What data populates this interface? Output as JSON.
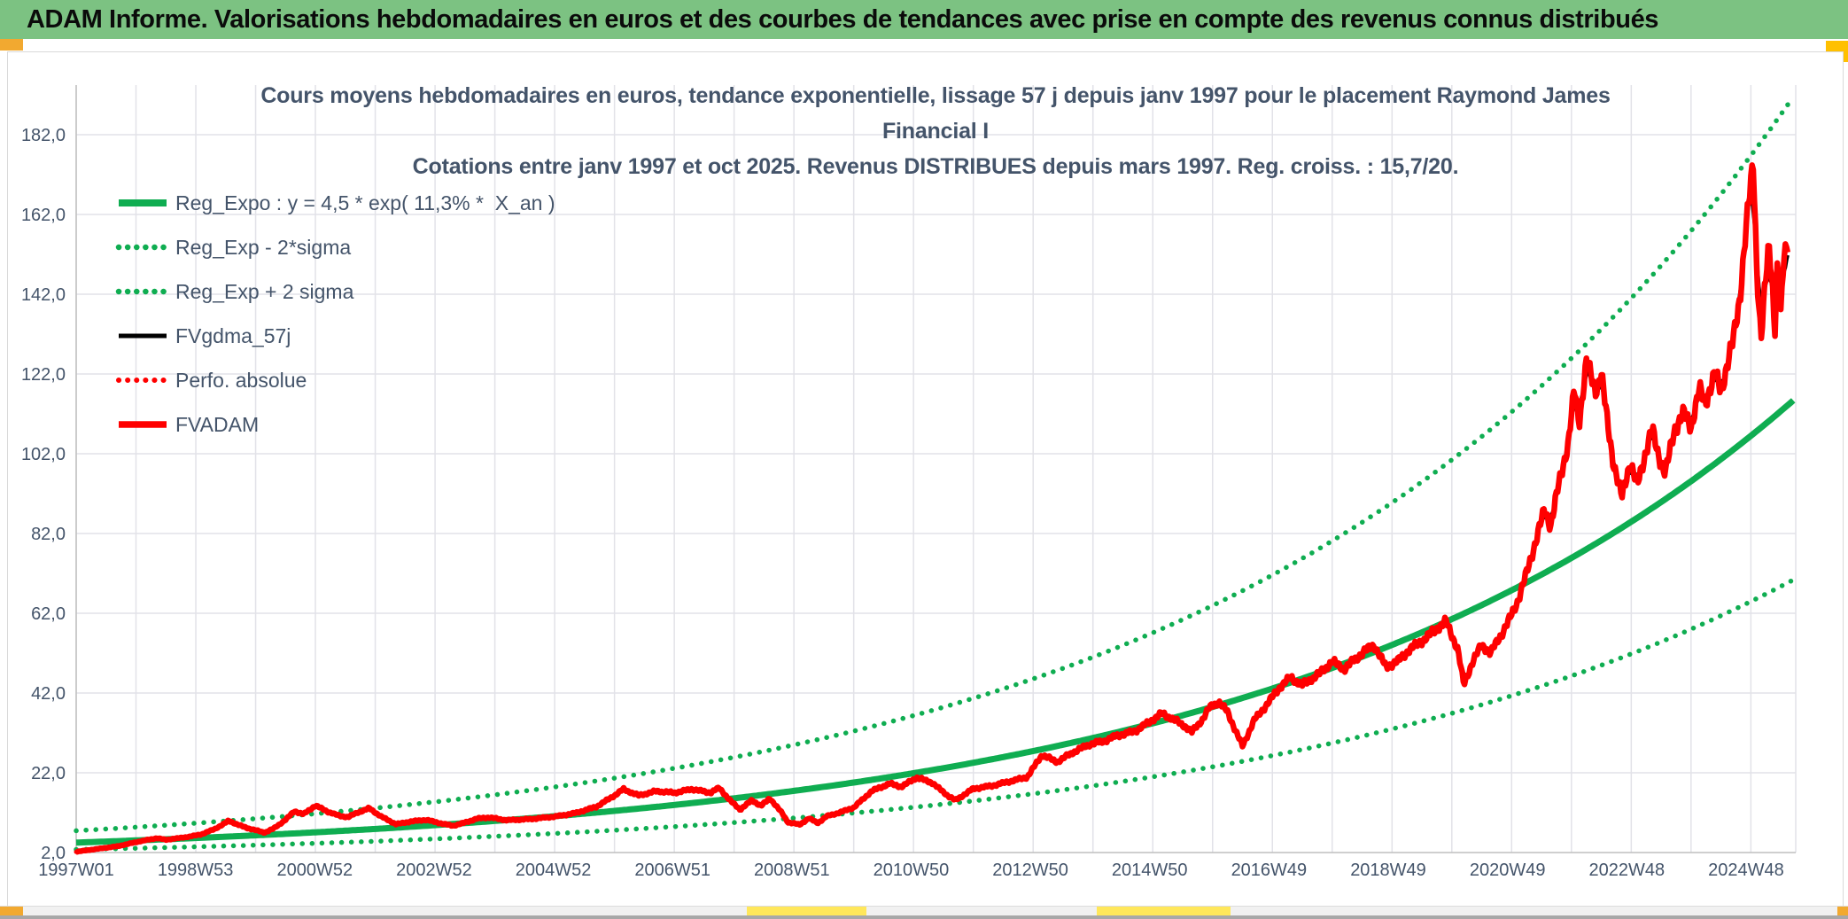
{
  "header": {
    "title": "ADAM Informe. Valorisations hebdomadaires en euros et des courbes de tendances avec prise en compte des revenus connus distribués"
  },
  "chart_data": {
    "type": "line",
    "title": "Cours moyens hebdomadaires en euros, tendance exponentielle, lissage 57 j depuis janv 1997 pour le placement Raymond James Financial I",
    "subtitle": "Cotations entre janv 1997 et oct 2025. Revenus DISTRIBUES depuis mars 1997. Reg. croiss. : 15,7/20.",
    "x_axis": {
      "tick_labels": [
        "1997W01",
        "1998W53",
        "2000W52",
        "2002W52",
        "2004W52",
        "2006W51",
        "2008W51",
        "2010W50",
        "2012W50",
        "2014W50",
        "2016W49",
        "2018W49",
        "2020W49",
        "2022W48",
        "2024W48"
      ],
      "tick_interval_weeks": 104,
      "range_years": [
        1997.0,
        2025.75
      ],
      "gridline_interval_years": 1,
      "grid": true
    },
    "y_axis": {
      "tick_labels": [
        "2,0",
        "22,0",
        "42,0",
        "62,0",
        "82,0",
        "102,0",
        "122,0",
        "142,0",
        "162,0",
        "182,0"
      ],
      "tick_values": [
        2,
        22,
        42,
        62,
        82,
        102,
        122,
        142,
        162,
        182
      ],
      "unit": "euros",
      "grid": true
    },
    "legend_position": "top-left-inside",
    "regression": {
      "formula_label": "y = 4,5 * exp( 11,3% *  X_an )",
      "a": 4.5,
      "annual_rate": 0.113,
      "band_upper_multiplier": 1.66,
      "band_lower_multiplier": 0.61,
      "growth_score_label": "Reg. croiss. : 15,7/20."
    },
    "series": [
      {
        "name": "Reg_Expo : y = 4,5 * exp( 11,3% *  X_an )",
        "color": "#0FAD51",
        "style": "solid",
        "width": 7,
        "source": "regression"
      },
      {
        "name": "Reg_Exp - 2*sigma",
        "color": "#0FAD51",
        "style": "dotted",
        "width": 5.5,
        "source": "band_lower"
      },
      {
        "name": "Reg_Exp + 2 sigma",
        "color": "#0FAD51",
        "style": "dotted",
        "width": 5.5,
        "source": "band_upper"
      },
      {
        "name": "FVgdma_57j",
        "color": "#000000",
        "style": "solid",
        "width": 4,
        "source": "smoothed",
        "smoothing_weeks": 9
      },
      {
        "name": "Perfo. absolue",
        "color": "#FF0000",
        "style": "dotted",
        "width": 5,
        "source": "points"
      },
      {
        "name": "FVADAM",
        "color": "#FF0000",
        "style": "solid",
        "width": 6.5,
        "source": "points"
      }
    ],
    "points": {
      "x_years": [
        1997.0,
        1997.15,
        1997.3,
        1997.5,
        1997.7,
        1997.85,
        1998.0,
        1998.2,
        1998.35,
        1998.5,
        1998.7,
        1998.9,
        1999.1,
        1999.3,
        1999.45,
        1999.55,
        1999.7,
        1999.85,
        2000.0,
        2000.15,
        2000.3,
        2000.5,
        2000.65,
        2000.8,
        2001.0,
        2001.2,
        2001.4,
        2001.55,
        2001.7,
        2001.9,
        2002.1,
        2002.35,
        2002.6,
        2002.85,
        2003.1,
        2003.3,
        2003.5,
        2003.7,
        2003.9,
        2004.2,
        2004.6,
        2005.0,
        2005.35,
        2005.7,
        2006.0,
        2006.15,
        2006.4,
        2006.7,
        2007.0,
        2007.3,
        2007.6,
        2007.75,
        2007.95,
        2008.1,
        2008.3,
        2008.45,
        2008.6,
        2008.8,
        2008.9,
        2009.1,
        2009.25,
        2009.4,
        2009.55,
        2009.8,
        2010.0,
        2010.3,
        2010.6,
        2010.8,
        2011.05,
        2011.3,
        2011.58,
        2011.7,
        2012.0,
        2012.3,
        2012.6,
        2012.9,
        2013.15,
        2013.4,
        2013.65,
        2013.94,
        2014.2,
        2014.4,
        2014.7,
        2015.0,
        2015.15,
        2015.3,
        2015.55,
        2015.65,
        2015.85,
        2015.95,
        2016.1,
        2016.25,
        2016.4,
        2016.5,
        2016.7,
        2016.85,
        2017.1,
        2017.3,
        2017.5,
        2017.8,
        2018.0,
        2018.2,
        2018.5,
        2018.7,
        2018.9,
        2019.1,
        2019.3,
        2019.5,
        2019.7,
        2019.9,
        2020.1,
        2020.2,
        2020.35,
        2020.5,
        2020.65,
        2020.8,
        2020.95,
        2021.1,
        2021.25,
        2021.4,
        2021.55,
        2021.65,
        2021.8,
        2021.95,
        2022.05,
        2022.13,
        2022.25,
        2022.4,
        2022.5,
        2022.6,
        2022.7,
        2022.84,
        2022.98,
        2023.1,
        2023.25,
        2023.35,
        2023.45,
        2023.57,
        2023.72,
        2023.87,
        2024.0,
        2024.14,
        2024.24,
        2024.4,
        2024.5,
        2024.6,
        2024.7,
        2024.82,
        2024.92,
        2025.0,
        2025.04,
        2025.1,
        2025.17,
        2025.23,
        2025.3,
        2025.35,
        2025.4,
        2025.45,
        2025.5,
        2025.55,
        2025.62
      ],
      "values": [
        2.2,
        2.5,
        2.8,
        3.2,
        3.6,
        4.1,
        4.6,
        5.2,
        5.6,
        5.2,
        5.6,
        6.0,
        6.6,
        7.8,
        9.0,
        10.0,
        9.0,
        8.2,
        7.6,
        7.0,
        8.0,
        10.2,
        12.4,
        11.6,
        13.8,
        12.3,
        11.2,
        10.9,
        12.0,
        13.1,
        11.0,
        9.1,
        9.8,
        10.2,
        9.3,
        8.7,
        9.5,
        10.5,
        10.8,
        10.1,
        10.4,
        11.0,
        11.9,
        13.5,
        16.3,
        17.9,
        16.3,
        17.4,
        17.0,
        17.9,
        17.0,
        18.2,
        14.8,
        12.8,
        15.1,
        13.7,
        15.6,
        11.9,
        9.6,
        9.0,
        10.6,
        9.4,
        11.1,
        12.2,
        13.3,
        17.4,
        19.3,
        18.5,
        20.8,
        19.6,
        16.2,
        15.1,
        18.0,
        18.7,
        19.8,
        20.9,
        26.5,
        24.7,
        27.0,
        29.1,
        30.0,
        31.3,
        32.4,
        35.3,
        36.9,
        35.8,
        33.6,
        32.1,
        35.8,
        38.4,
        39.8,
        37.3,
        32.0,
        28.7,
        35.3,
        38.0,
        43.0,
        46.0,
        44.0,
        47.0,
        50.0,
        48.0,
        52.0,
        54.0,
        48.5,
        50.0,
        53.0,
        55.0,
        57.5,
        60.0,
        53.0,
        44.0,
        50.0,
        54.0,
        52.0,
        56.0,
        60.0,
        65.0,
        72.0,
        80.0,
        88.0,
        84.0,
        95.0,
        105.0,
        118.0,
        110.0,
        125.0,
        118.0,
        122.0,
        110.0,
        100.0,
        91.0,
        100.0,
        94.0,
        103.0,
        108.0,
        102.0,
        97.0,
        108.0,
        112.0,
        109.0,
        118.0,
        115.0,
        122.0,
        118.0,
        124.0,
        130.0,
        142.0,
        158.0,
        170.0,
        176.0,
        148.0,
        130.0,
        142.0,
        155.0,
        148.0,
        132.0,
        150.0,
        136.0,
        152.0,
        156.0
      ]
    },
    "notes": {
      "perfo_absolue": "dotted red series coincides with FVADAM (hidden beneath it)",
      "fvgdma": "black curve is 57-day smoothing of FVADAM"
    }
  },
  "colors": {
    "header_bg": "#7CC282",
    "accent_gold": "#F2A930",
    "accent_yellow": "#FFE75A",
    "title_text": "#44546A",
    "grid": "#e2e2e8",
    "axis": "#bfbfbf",
    "green_line": "#0FAD51",
    "red_line": "#FF0000",
    "black_line": "#000000"
  }
}
